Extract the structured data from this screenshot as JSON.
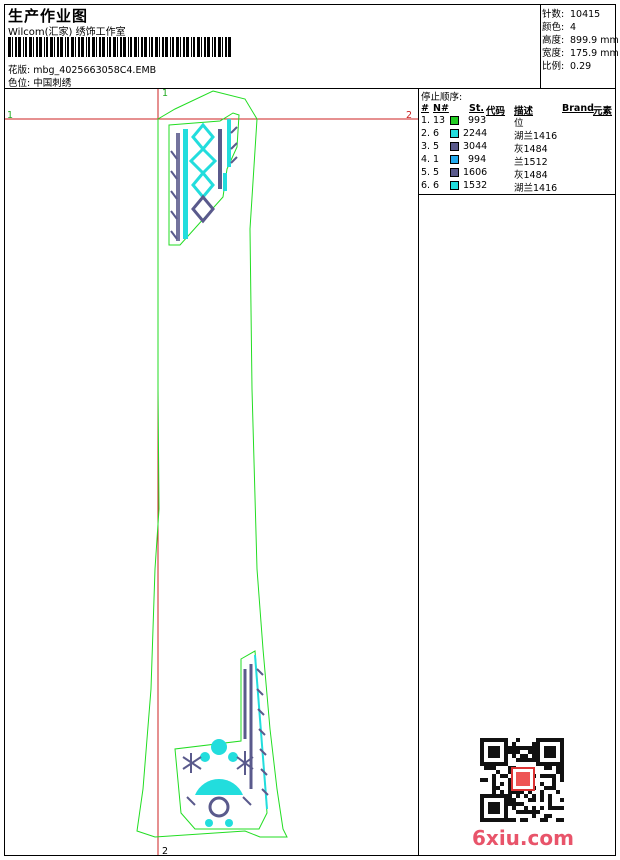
{
  "header": {
    "title": "生产作业图",
    "subtitle": "Wilcom(汇家) 绣饰工作室",
    "design_label": "花版:",
    "design_value": "mbg_4025663058C4.EMB",
    "position_label": "色位:",
    "position_value": "中国刺绣"
  },
  "stats": [
    {
      "label": "针数:",
      "value": "10415"
    },
    {
      "label": "颜色:",
      "value": "4"
    },
    {
      "label": "高度:",
      "value": "899.9 mm"
    },
    {
      "label": "宽度:",
      "value": "175.9 mm"
    },
    {
      "label": "比例:",
      "value": "0.29"
    }
  ],
  "stop_sequence": {
    "title": "停止顺序:",
    "columns": [
      "#",
      "N#",
      "St.",
      "代码",
      "描述",
      "Brand",
      "元素"
    ],
    "rows": [
      {
        "idx": "1.",
        "n": "13",
        "code": "993",
        "desc": "位",
        "color": "#22cc22"
      },
      {
        "idx": "2.",
        "n": "6",
        "code": "2244",
        "desc": "湖兰1416",
        "color": "#22dddd"
      },
      {
        "idx": "3.",
        "n": "5",
        "code": "3044",
        "desc": "灰1484",
        "color": "#5a5a8c"
      },
      {
        "idx": "4.",
        "n": "1",
        "code": "994",
        "desc": "兰1512",
        "color": "#22aaee"
      },
      {
        "idx": "5.",
        "n": "5",
        "code": "1606",
        "desc": "灰1484",
        "color": "#5a5a8c"
      },
      {
        "idx": "6.",
        "n": "6",
        "code": "1532",
        "desc": "湖兰1416",
        "color": "#22dddd"
      }
    ]
  },
  "guides": {
    "h_left": "1",
    "h_right": "2",
    "v_top": "1",
    "v_bottom": "2"
  },
  "watermark": {
    "text": "6xiu.com"
  },
  "colors": {
    "outline": "#22dd22",
    "guide": "#cc2222",
    "cyan": "#22dddd",
    "slate": "#5a5a8c"
  }
}
